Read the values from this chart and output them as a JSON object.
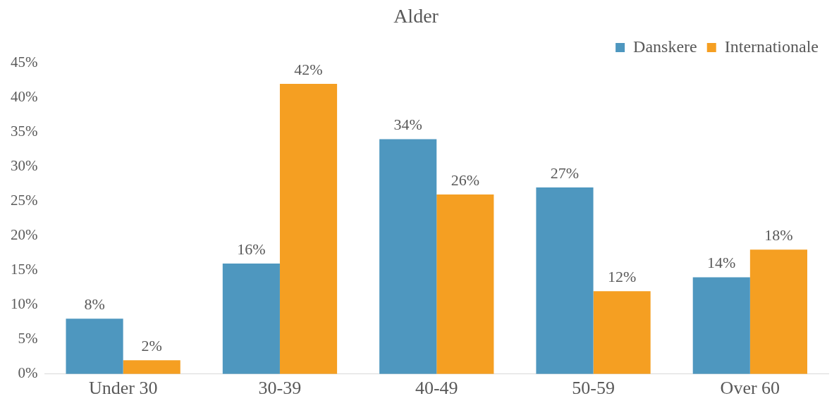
{
  "chart_data": {
    "type": "bar",
    "title": "Alder",
    "categories": [
      "Under 30",
      "30-39",
      "40-49",
      "50-59",
      "Over 60"
    ],
    "series": [
      {
        "name": "Danskere",
        "color": "#4e97bf",
        "values": [
          8,
          16,
          34,
          27,
          14
        ],
        "value_labels": [
          "8%",
          "16%",
          "34%",
          "27%",
          "14%"
        ]
      },
      {
        "name": "Internationale",
        "color": "#f59f22",
        "values": [
          2,
          42,
          26,
          12,
          18
        ],
        "value_labels": [
          "2%",
          "42%",
          "26%",
          "12%",
          "18%"
        ]
      }
    ],
    "ylim": [
      0,
      45
    ],
    "yticks": [
      {
        "value": 0,
        "label": "0%"
      },
      {
        "value": 5,
        "label": "5%"
      },
      {
        "value": 10,
        "label": "10%"
      },
      {
        "value": 15,
        "label": "15%"
      },
      {
        "value": 20,
        "label": "20%"
      },
      {
        "value": 25,
        "label": "25%"
      },
      {
        "value": 30,
        "label": "30%"
      },
      {
        "value": 35,
        "label": "35%"
      },
      {
        "value": 40,
        "label": "40%"
      },
      {
        "value": 45,
        "label": "45%"
      }
    ],
    "legend": "top right",
    "grid": false
  }
}
